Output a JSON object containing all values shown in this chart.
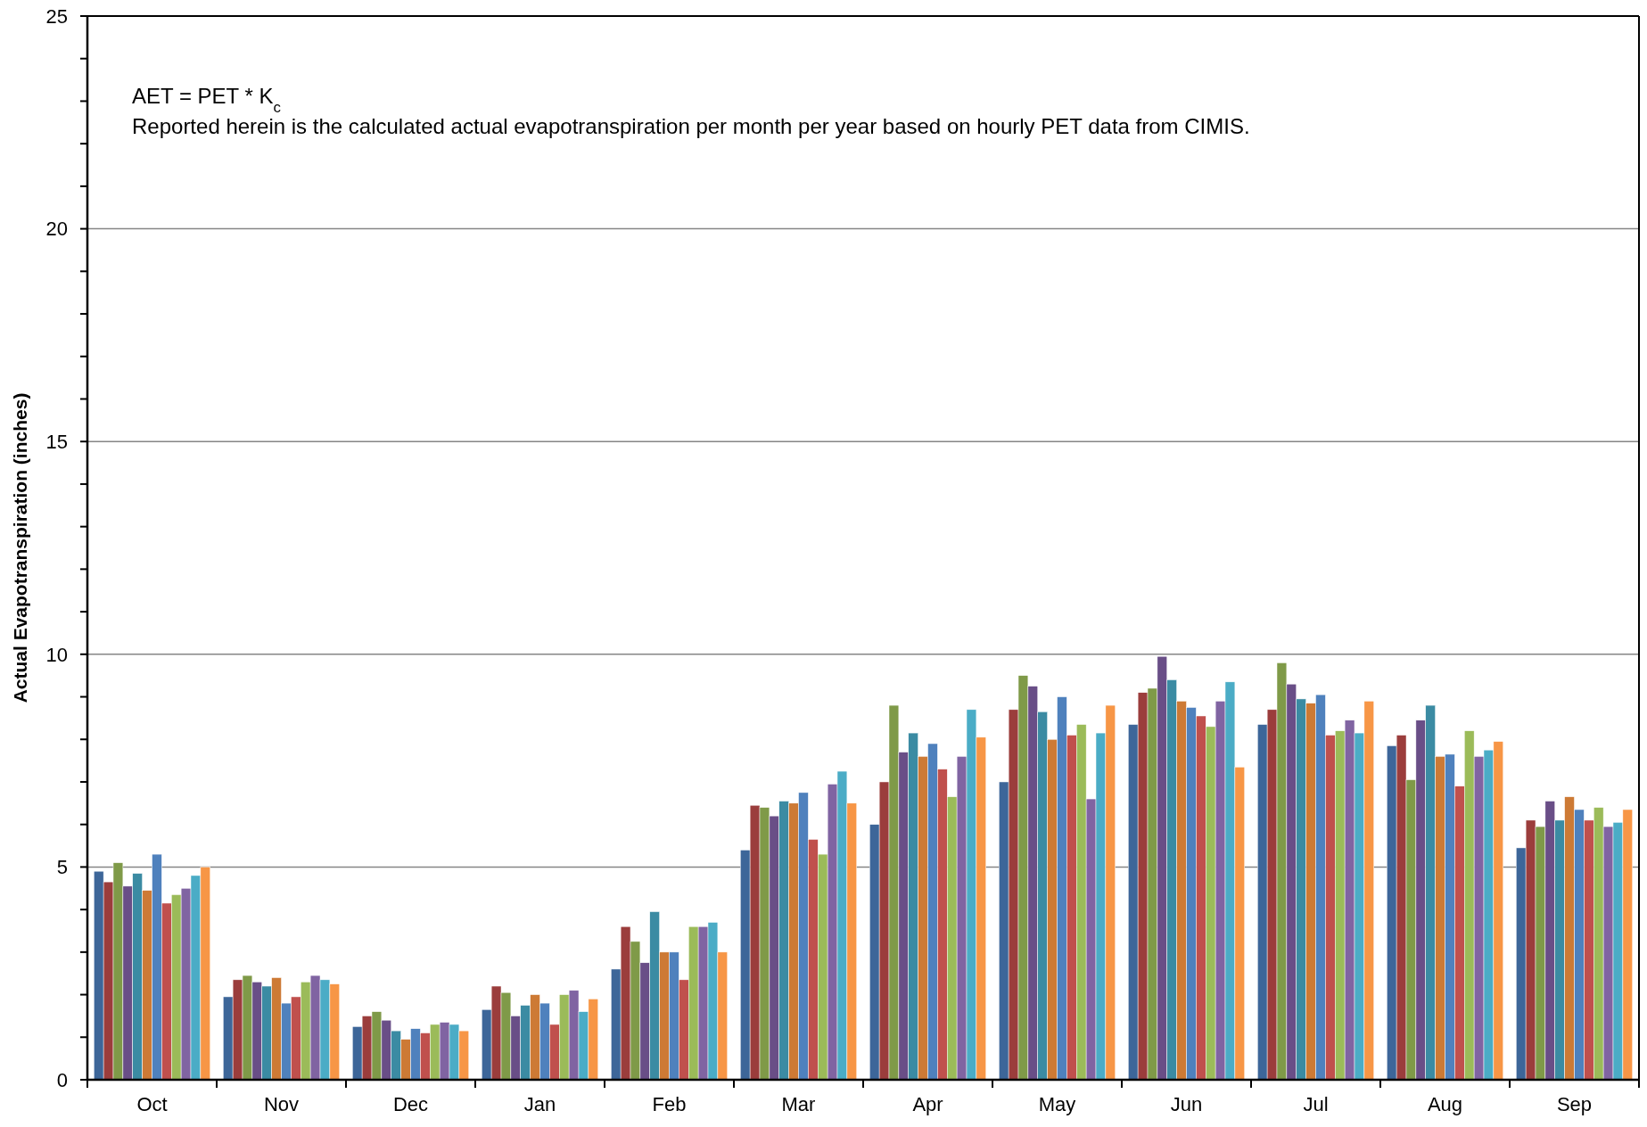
{
  "chart_data": {
    "type": "bar",
    "ylabel": "Actual Evapotranspiration (inches)",
    "annotations": [
      "AET = PET * K$_{c}$",
      "Reported herein is the calculated actual evapotranspiration per month per year based on hourly PET data from CIMIS."
    ],
    "categories": [
      "Oct",
      "Nov",
      "Dec",
      "Jan",
      "Feb",
      "Mar",
      "Apr",
      "May",
      "Jun",
      "Jul",
      "Aug",
      "Sep"
    ],
    "ylim": [
      0,
      25
    ],
    "yticks": [
      0,
      {
        "value": 1,
        "label": null
      },
      {
        "value": 2,
        "label": null
      },
      {
        "value": 3,
        "label": null
      },
      {
        "value": 4,
        "label": null
      },
      5,
      {
        "value": 6,
        "label": null
      },
      {
        "value": 7,
        "label": null
      },
      {
        "value": 8,
        "label": null
      },
      {
        "value": 9,
        "label": null
      },
      10,
      {
        "value": 11,
        "label": null
      },
      {
        "value": 12,
        "label": null
      },
      {
        "value": 13,
        "label": null
      },
      {
        "value": 14,
        "label": null
      },
      15,
      {
        "value": 16,
        "label": null
      },
      {
        "value": 17,
        "label": null
      },
      {
        "value": 18,
        "label": null
      },
      {
        "value": 19,
        "label": null
      },
      20,
      {
        "value": 21,
        "label": null
      },
      {
        "value": 22,
        "label": null
      },
      {
        "value": 23,
        "label": null
      },
      {
        "value": 24,
        "label": null
      },
      25
    ],
    "grid": "y",
    "series": [
      {
        "color": "#3d6699",
        "values": [
          4.9,
          1.95,
          1.25,
          1.65,
          2.6,
          5.4,
          6.0,
          7.0,
          8.35,
          8.35,
          7.85,
          5.45
        ]
      },
      {
        "color": "#9b3d3c",
        "values": [
          4.65,
          2.35,
          1.5,
          2.2,
          3.6,
          6.45,
          7.0,
          8.7,
          9.1,
          8.7,
          8.1,
          6.1
        ]
      },
      {
        "color": "#7f9a48",
        "values": [
          5.1,
          2.45,
          1.6,
          2.05,
          3.25,
          6.4,
          8.8,
          9.5,
          9.2,
          9.8,
          7.05,
          5.95
        ]
      },
      {
        "color": "#694e87",
        "values": [
          4.55,
          2.3,
          1.4,
          1.5,
          2.75,
          6.2,
          7.7,
          9.25,
          9.95,
          9.3,
          8.45,
          6.55
        ]
      },
      {
        "color": "#3b8ba3",
        "values": [
          4.85,
          2.2,
          1.15,
          1.75,
          3.95,
          6.55,
          8.15,
          8.65,
          9.4,
          8.95,
          8.8,
          6.1
        ]
      },
      {
        "color": "#cd7a35",
        "values": [
          4.45,
          2.4,
          0.95,
          2.0,
          3.0,
          6.5,
          7.6,
          8.0,
          8.9,
          8.85,
          7.6,
          6.65
        ]
      },
      {
        "color": "#4f81bd",
        "values": [
          5.3,
          1.8,
          1.2,
          1.8,
          3.0,
          6.75,
          7.9,
          9.0,
          8.75,
          9.05,
          7.65,
          6.35
        ]
      },
      {
        "color": "#c0504d",
        "values": [
          4.15,
          1.95,
          1.1,
          1.3,
          2.35,
          5.65,
          7.3,
          8.1,
          8.55,
          8.1,
          6.9,
          6.1
        ]
      },
      {
        "color": "#9bbb59",
        "values": [
          4.35,
          2.3,
          1.3,
          2.0,
          3.6,
          5.3,
          6.65,
          8.35,
          8.3,
          8.2,
          8.2,
          6.4
        ]
      },
      {
        "color": "#8064a2",
        "values": [
          4.5,
          2.45,
          1.35,
          2.1,
          3.6,
          6.95,
          7.6,
          6.6,
          8.9,
          8.45,
          7.6,
          5.95
        ]
      },
      {
        "color": "#4bacc6",
        "values": [
          4.8,
          2.35,
          1.3,
          1.6,
          3.7,
          7.25,
          8.7,
          8.15,
          9.35,
          8.15,
          7.75,
          6.05
        ]
      },
      {
        "color": "#f79646",
        "values": [
          5.0,
          2.25,
          1.15,
          1.9,
          3.0,
          6.5,
          8.05,
          8.8,
          7.35,
          8.9,
          7.95,
          6.35
        ]
      }
    ]
  }
}
